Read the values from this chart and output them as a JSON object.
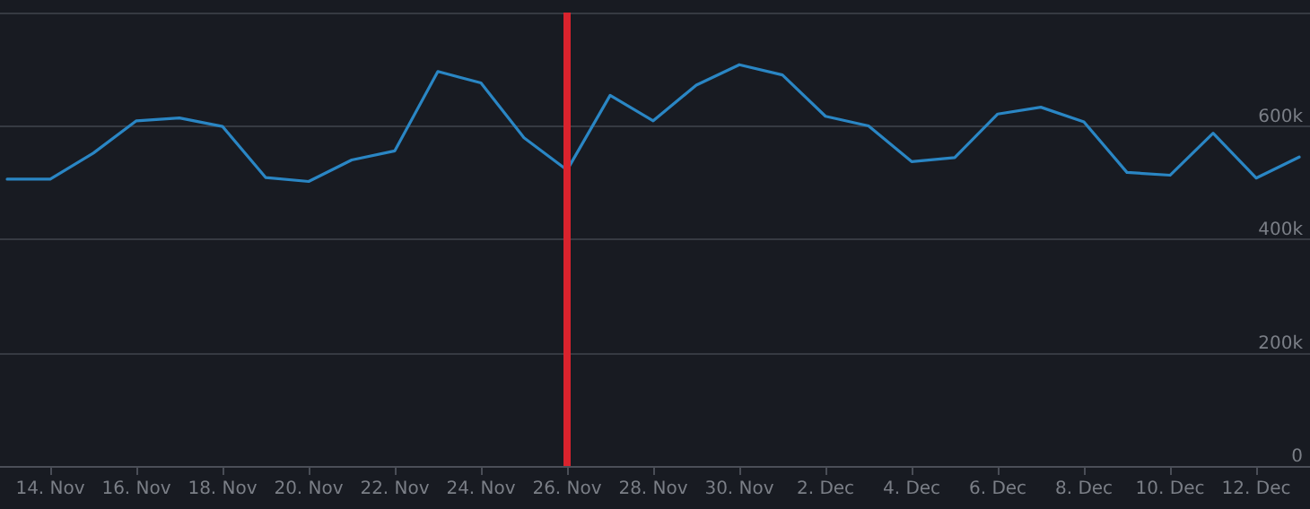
{
  "chart_data": {
    "type": "line",
    "x": [
      "--11-13",
      "--11-14",
      "--11-15",
      "--11-16",
      "--11-17",
      "--11-18",
      "--11-19",
      "--11-20",
      "--11-21",
      "--11-22",
      "--11-23",
      "--11-24",
      "--11-25",
      "--11-26",
      "--11-27",
      "--11-28",
      "--11-29",
      "--11-30",
      "--12-01",
      "--12-02",
      "--12-03",
      "--12-04",
      "--12-05",
      "--12-06",
      "--12-07",
      "--12-08",
      "--12-09",
      "--12-10",
      "--12-11",
      "--12-12",
      "--12-13"
    ],
    "series": [
      {
        "color": "#2a86c4",
        "values": [
          506000,
          506000,
          552000,
          609000,
          614000,
          599000,
          509000,
          502000,
          540000,
          556000,
          696000,
          676000,
          579000,
          522000,
          654000,
          609000,
          672000,
          708000,
          690000,
          617000,
          600000,
          537000,
          544000,
          621000,
          633000,
          607000,
          518000,
          513000,
          587000,
          508000,
          545000
        ]
      }
    ],
    "xlim": [
      "--11-12T20:00",
      "--12-13T06:00"
    ],
    "xticks": [
      {
        "value": "--11-14",
        "label": "14. Nov"
      },
      {
        "value": "--11-16",
        "label": "16. Nov"
      },
      {
        "value": "--11-18",
        "label": "18. Nov"
      },
      {
        "value": "--11-20",
        "label": "20. Nov"
      },
      {
        "value": "--11-22",
        "label": "22. Nov"
      },
      {
        "value": "--11-24",
        "label": "24. Nov"
      },
      {
        "value": "--11-26",
        "label": "26. Nov"
      },
      {
        "value": "--11-28",
        "label": "28. Nov"
      },
      {
        "value": "--11-30",
        "label": "30. Nov"
      },
      {
        "value": "--12-02",
        "label": "2. Dec"
      },
      {
        "value": "--12-04",
        "label": "4. Dec"
      },
      {
        "value": "--12-06",
        "label": "6. Dec"
      },
      {
        "value": "--12-08",
        "label": "8. Dec"
      },
      {
        "value": "--12-10",
        "label": "10. Dec"
      },
      {
        "value": "--12-12",
        "label": "12. Dec"
      }
    ],
    "ylim": [
      0,
      800000
    ],
    "yticks": [
      0,
      {
        "value": 200000,
        "label": "200k"
      },
      {
        "value": 400000,
        "label": "400k"
      },
      {
        "value": 600000,
        "label": "600k"
      },
      {
        "value": 800000,
        "label": null
      }
    ],
    "grid": "y",
    "marker": "none",
    "line_style": "solid",
    "ref_lines": [
      {
        "axis": "x",
        "value": "--11-26",
        "color": "#d9232d",
        "line_style": "solid"
      }
    ]
  }
}
